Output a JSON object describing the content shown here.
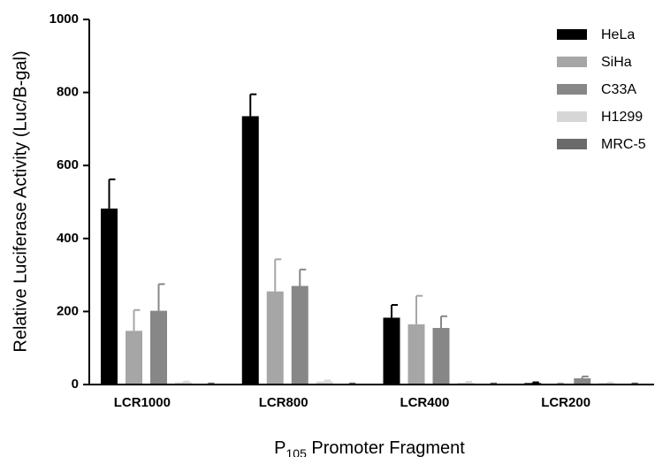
{
  "chart_data": {
    "type": "bar",
    "title": "",
    "xlabel": "P",
    "xlabel_subscript": "105",
    "xlabel_suffix": " Promoter Fragment",
    "ylabel": "Relative Luciferase Activity (Luc/B-gal)",
    "ylim": [
      0,
      1000
    ],
    "yticks": [
      0,
      200,
      400,
      600,
      800,
      1000
    ],
    "grid": false,
    "legend_position": "top-right",
    "categories": [
      "LCR1000",
      "LCR800",
      "LCR400",
      "LCR200"
    ],
    "series": [
      {
        "name": "HeLa",
        "color": "#000000",
        "values": [
          482,
          735,
          183,
          4
        ],
        "errors": [
          80,
          60,
          35,
          2
        ]
      },
      {
        "name": "SiHa",
        "color": "#a6a6a6",
        "values": [
          147,
          255,
          165,
          2
        ],
        "errors": [
          57,
          88,
          78,
          1
        ]
      },
      {
        "name": "C33A",
        "color": "#878787",
        "values": [
          202,
          270,
          155,
          17
        ],
        "errors": [
          73,
          45,
          32,
          5
        ]
      },
      {
        "name": "H1299",
        "color": "#d6d6d6",
        "values": [
          6,
          8,
          5,
          4
        ],
        "errors": [
          2,
          3,
          2,
          1
        ]
      },
      {
        "name": "MRC-5",
        "color": "#6a6a6a",
        "values": [
          2,
          2,
          2,
          2
        ],
        "errors": [
          1,
          1,
          1,
          1
        ]
      }
    ]
  }
}
